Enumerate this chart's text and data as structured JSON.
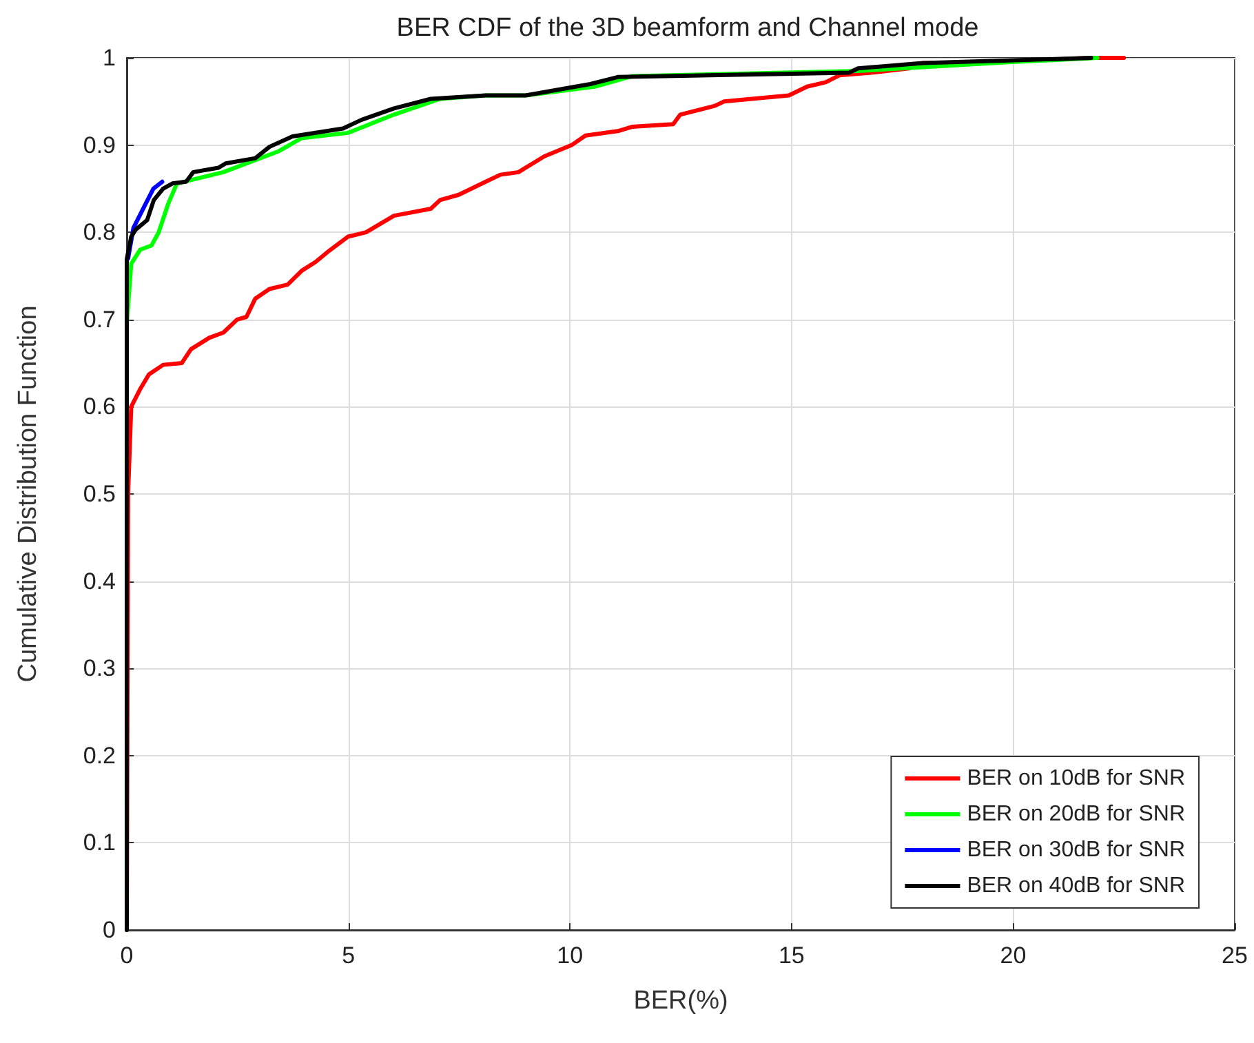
{
  "chart_data": {
    "type": "line",
    "title": "BER CDF of the 3D beamform and Channel mode",
    "xlabel": "BER(%)",
    "ylabel": "Cumulative Distribution Function",
    "xlim": [
      0,
      25
    ],
    "xticks": [
      0,
      5,
      10,
      15,
      20,
      25
    ],
    "ylim": [
      0,
      1
    ],
    "yticks": [
      0,
      0.1,
      0.2,
      0.3,
      0.4,
      0.5,
      0.6,
      0.7,
      0.8,
      0.9,
      1
    ],
    "grid": true,
    "legend": "bottom right",
    "marker": "none",
    "line_style": "solid",
    "series": [
      {
        "name": "BER on 10dB for SNR",
        "color": "#ff0000",
        "x": [
          0,
          0.03,
          0.1,
          0.3,
          0.5,
          0.82,
          1.24,
          1.45,
          1.86,
          2.18,
          2.49,
          2.7,
          2.9,
          3.22,
          3.63,
          3.95,
          4.26,
          4.57,
          4.99,
          5.4,
          6.03,
          6.86,
          7.07,
          7.49,
          8.1,
          8.43,
          8.84,
          9.16,
          9.42,
          10.04,
          10.35,
          11.08,
          11.4,
          12.33,
          12.49,
          13.27,
          13.48,
          14.94,
          15.35,
          15.77,
          16.08,
          16.8,
          17.65,
          17.96,
          19.4,
          21.8,
          22.5
        ],
        "values": [
          0,
          0.5,
          0.6,
          0.62,
          0.637,
          0.648,
          0.65,
          0.666,
          0.679,
          0.685,
          0.7,
          0.703,
          0.724,
          0.735,
          0.74,
          0.756,
          0.766,
          0.779,
          0.795,
          0.8,
          0.819,
          0.827,
          0.837,
          0.843,
          0.858,
          0.866,
          0.869,
          0.879,
          0.887,
          0.9,
          0.911,
          0.916,
          0.921,
          0.924,
          0.935,
          0.945,
          0.95,
          0.957,
          0.967,
          0.972,
          0.98,
          0.983,
          0.988,
          0.994,
          0.995,
          1,
          1
        ]
      },
      {
        "name": "BER on 20dB for SNR",
        "color": "#00ff00",
        "x": [
          0,
          0,
          0.1,
          0.3,
          0.56,
          0.72,
          0.93,
          1.13,
          2.18,
          3.43,
          3.95,
          4.99,
          6.03,
          7.07,
          8.1,
          9.0,
          10.56,
          11.4,
          16.5,
          19.9,
          21.9
        ],
        "values": [
          0,
          0.695,
          0.764,
          0.78,
          0.785,
          0.8,
          0.832,
          0.856,
          0.869,
          0.893,
          0.908,
          0.914,
          0.935,
          0.953,
          0.957,
          0.957,
          0.967,
          0.979,
          0.985,
          0.995,
          1
        ]
      },
      {
        "name": "BER on 30dB for SNR",
        "color": "#0000ff",
        "x": [
          0.03,
          0.15,
          0.4,
          0.6,
          0.8
        ],
        "values": [
          0.77,
          0.805,
          0.83,
          0.85,
          0.858
        ]
      },
      {
        "name": "BER on 40dB for SNR",
        "color": "#000000",
        "x": [
          0,
          0,
          0.1,
          0.2,
          0.46,
          0.61,
          0.82,
          1.03,
          1.34,
          1.5,
          2.07,
          2.23,
          2.9,
          3.22,
          3.74,
          4.88,
          5.3,
          6.03,
          6.86,
          8.1,
          9.0,
          10.46,
          11.08,
          16.3,
          16.5,
          17.96,
          19.9,
          21.76
        ],
        "values": [
          0,
          0.769,
          0.795,
          0.803,
          0.814,
          0.837,
          0.85,
          0.856,
          0.858,
          0.869,
          0.874,
          0.879,
          0.885,
          0.898,
          0.91,
          0.919,
          0.929,
          0.942,
          0.953,
          0.957,
          0.957,
          0.97,
          0.978,
          0.983,
          0.988,
          0.994,
          0.997,
          1
        ]
      }
    ]
  }
}
